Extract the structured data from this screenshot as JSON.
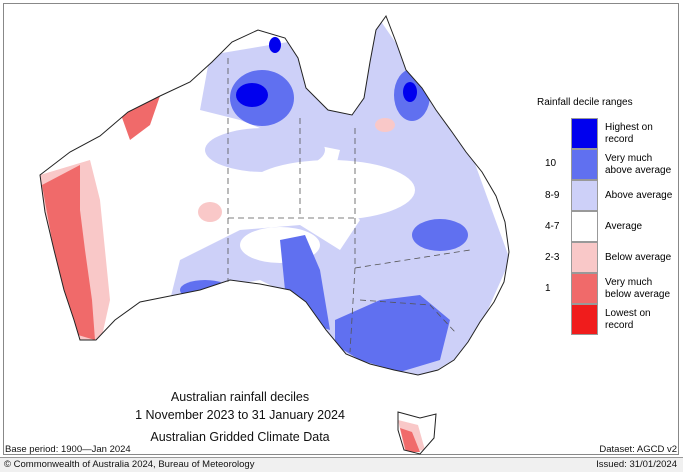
{
  "map": {
    "title_lines": [
      "Australian rainfall deciles",
      "1 November 2023 to 31 January 2024",
      "Australian Gridded Climate Data"
    ],
    "base_period": "Base period: 1900—Jan 2024",
    "dataset": "Dataset: AGCD v2"
  },
  "legend": {
    "title": "Rainfall decile ranges",
    "items": [
      {
        "range": "",
        "label": "Highest on record",
        "color": "#0000ee"
      },
      {
        "range": "10",
        "label": "Very much above average",
        "color": "#6070f0"
      },
      {
        "range": "8-9",
        "label": "Above average",
        "color": "#cdd0f8"
      },
      {
        "range": "4-7",
        "label": "Average",
        "color": "#ffffff"
      },
      {
        "range": "2-3",
        "label": "Below average",
        "color": "#f9c8c8"
      },
      {
        "range": "1",
        "label": "Very much below average",
        "color": "#f06a6a"
      },
      {
        "range": "",
        "label": "Lowest on record",
        "color": "#f01c1c"
      }
    ]
  },
  "footer": {
    "copyright": "© Commonwealth of Australia 2024, Bureau of Meteorology",
    "issued": "Issued: 31/01/2024"
  }
}
